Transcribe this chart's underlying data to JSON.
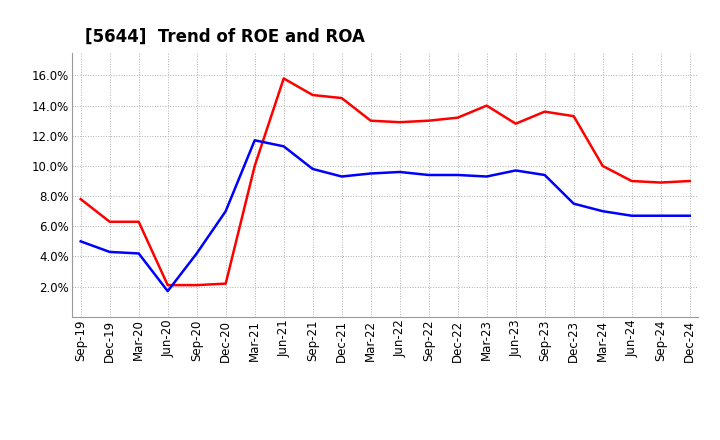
{
  "title": "[5644]  Trend of ROE and ROA",
  "x_labels": [
    "Sep-19",
    "Dec-19",
    "Mar-20",
    "Jun-20",
    "Sep-20",
    "Dec-20",
    "Mar-21",
    "Jun-21",
    "Sep-21",
    "Dec-21",
    "Mar-22",
    "Jun-22",
    "Sep-22",
    "Dec-22",
    "Mar-23",
    "Jun-23",
    "Sep-23",
    "Dec-23",
    "Mar-24",
    "Jun-24",
    "Sep-24",
    "Dec-24"
  ],
  "roe": [
    7.8,
    6.3,
    6.3,
    2.1,
    2.1,
    2.2,
    10.0,
    15.8,
    14.7,
    14.5,
    13.0,
    12.9,
    13.0,
    13.2,
    14.0,
    12.8,
    13.6,
    13.3,
    10.0,
    9.0,
    8.9,
    9.0
  ],
  "roa": [
    5.0,
    4.3,
    4.2,
    1.7,
    4.2,
    7.0,
    11.7,
    11.3,
    9.8,
    9.3,
    9.5,
    9.6,
    9.4,
    9.4,
    9.3,
    9.7,
    9.4,
    7.5,
    7.0,
    6.7,
    6.7,
    6.7
  ],
  "roe_color": "#ff0000",
  "roa_color": "#0000ff",
  "ylim": [
    0,
    17.5
  ],
  "yticks": [
    2.0,
    4.0,
    6.0,
    8.0,
    10.0,
    12.0,
    14.0,
    16.0
  ],
  "background_color": "#ffffff",
  "grid_color": "#b0b0b0",
  "title_fontsize": 12,
  "axis_fontsize": 8.5,
  "legend_fontsize": 10,
  "line_width": 1.8
}
